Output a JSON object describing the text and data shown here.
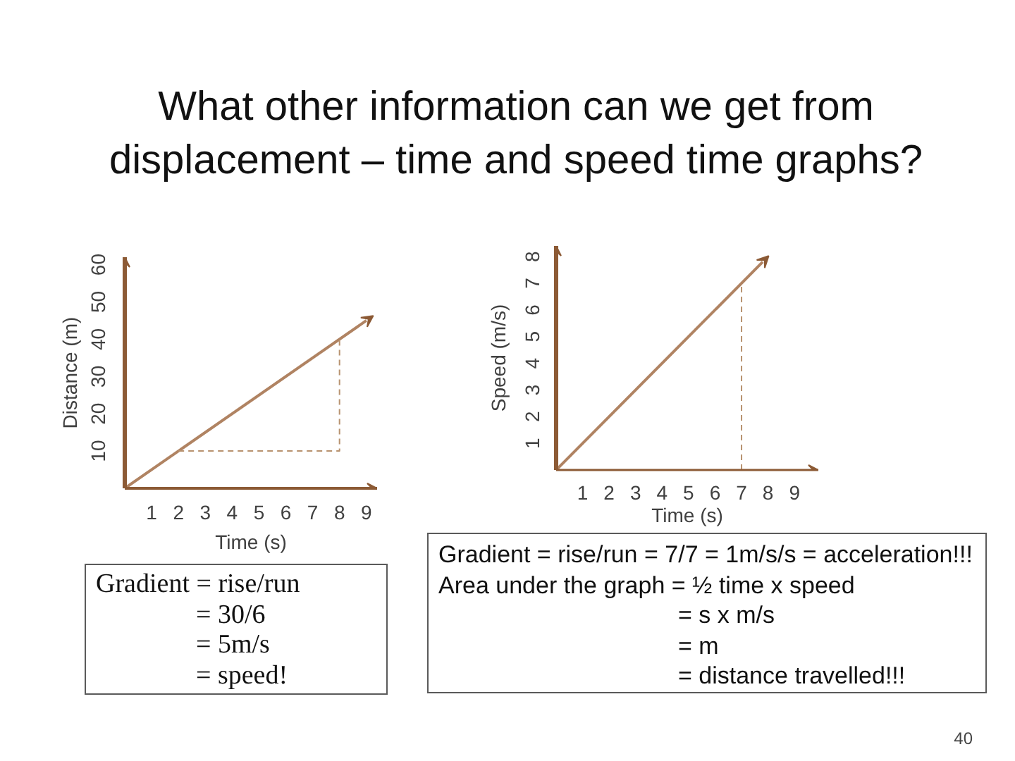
{
  "chart_data": [
    {
      "type": "line",
      "title": "What other information can we get from displacement – time and speed time graphs?",
      "xlabel": "Time (s)",
      "ylabel": "Distance (m)",
      "xlim": [
        0,
        9.4
      ],
      "ylim": [
        0,
        62
      ],
      "xticks": [
        1,
        2,
        3,
        4,
        5,
        6,
        7,
        8,
        9
      ],
      "yticks": [
        10,
        20,
        30,
        40,
        50,
        60
      ],
      "series": [
        {
          "color": "#b08362",
          "x": [
            0,
            9
          ],
          "values": [
            0,
            45
          ]
        },
        {
          "color": "#b8926f",
          "x": [
            2,
            8,
            8
          ],
          "values": [
            10,
            10,
            40
          ],
          "line_style": "dashed"
        }
      ],
      "annotations": [
        "Gradient = rise/run\n= 30/6\n= 5m/s\n= speed!"
      ]
    },
    {
      "type": "line",
      "xlabel": "Time (s)",
      "ylabel": "Speed (m/s)",
      "xlim": [
        0,
        9.9
      ],
      "ylim": [
        0,
        8.4
      ],
      "xticks": [
        1,
        2,
        3,
        4,
        5,
        6,
        7,
        8,
        9
      ],
      "yticks": [
        1,
        2,
        3,
        4,
        5,
        6,
        7,
        8
      ],
      "series": [
        {
          "color": "#b08362",
          "x": [
            0,
            7.8
          ],
          "values": [
            0,
            7.8
          ]
        },
        {
          "color": "#b8926f",
          "x": [
            7,
            7
          ],
          "values": [
            0,
            7
          ],
          "line_style": "dashed"
        }
      ],
      "annotations": [
        "Gradient = rise/run = 7/7 = 1m/s/s = acceleration!!!\nArea under the graph = ½ time x speed\n= s x m/s\n= m\n= distance travelled!!!",
        "40"
      ]
    }
  ]
}
